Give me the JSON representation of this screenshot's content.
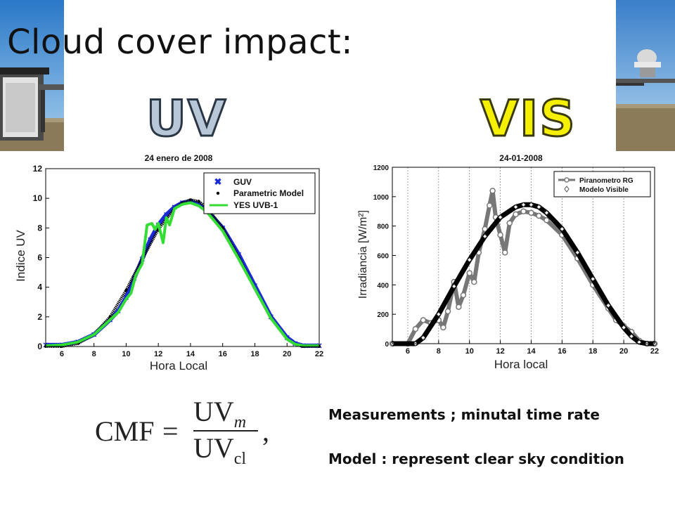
{
  "slide": {
    "title": "Cloud cover impact:",
    "uv_label": "UV",
    "vis_label": "VIS",
    "formula": {
      "lhs": "CMF",
      "eq": "=",
      "num": "UV",
      "num_sub": "m",
      "den": "UV",
      "den_sub": "cl",
      "tail": ","
    },
    "notes": [
      "Measurements ; minutal time rate",
      "Model : represent  clear sky condition"
    ]
  },
  "chart_data": [
    {
      "type": "line",
      "title": "24 enero de 2008",
      "xlabel": "Hora Local",
      "ylabel": "Indice UV",
      "xlim": [
        5,
        22
      ],
      "ylim": [
        0,
        12
      ],
      "xticks": [
        6,
        8,
        10,
        12,
        14,
        16,
        18,
        20,
        22
      ],
      "yticks": [
        0,
        2,
        4,
        6,
        8,
        10,
        12
      ],
      "legend_position": "top-right",
      "grid": false,
      "series": [
        {
          "name": "GUV",
          "color": "#1a2ad8",
          "marker": "x",
          "x": [
            5,
            6,
            7,
            8,
            9,
            9.5,
            10,
            10.5,
            11,
            11.5,
            12,
            12.5,
            13,
            13.5,
            14,
            14.5,
            15,
            16,
            17,
            18,
            19,
            20,
            20.5,
            21,
            22
          ],
          "y": [
            0.1,
            0.1,
            0.3,
            0.8,
            1.8,
            2.4,
            3.3,
            4.6,
            5.9,
            7.2,
            8.2,
            8.9,
            9.4,
            9.7,
            9.8,
            9.6,
            9.2,
            8.0,
            6.2,
            4.1,
            2.0,
            0.6,
            0.2,
            0.05,
            0.05
          ]
        },
        {
          "name": "Parametric Model",
          "color": "#000000",
          "marker": "dot",
          "x": [
            5,
            6,
            7,
            8,
            9,
            10,
            11,
            12,
            13,
            13.5,
            14,
            14.5,
            15,
            16,
            17,
            18,
            19,
            20,
            20.5,
            21,
            22
          ],
          "y": [
            0,
            0,
            0.2,
            0.8,
            2.0,
            3.8,
            5.9,
            7.9,
            9.3,
            9.7,
            9.9,
            9.8,
            9.4,
            8.0,
            6.0,
            3.9,
            1.9,
            0.5,
            0.15,
            0,
            0
          ]
        },
        {
          "name": "YES UVB-1",
          "color": "#33dd33",
          "marker": "line",
          "x": [
            5,
            6,
            7,
            8,
            9,
            9.5,
            10,
            10.3,
            10.6,
            11,
            11.3,
            11.6,
            11.8,
            12,
            12.3,
            12.5,
            12.7,
            13,
            13.5,
            14,
            14.5,
            15,
            16,
            17,
            18,
            19,
            20,
            20.5,
            21,
            22
          ],
          "y": [
            0.05,
            0.1,
            0.3,
            0.8,
            1.8,
            2.3,
            3.2,
            3.6,
            4.8,
            5.6,
            8.2,
            8.3,
            7.9,
            8.3,
            7.0,
            8.7,
            8.2,
            9.3,
            9.6,
            9.7,
            9.5,
            9.1,
            7.8,
            5.9,
            3.9,
            1.9,
            0.5,
            0.15,
            0.05,
            0.05
          ]
        }
      ]
    },
    {
      "type": "line",
      "title": "24-01-2008",
      "xlabel": "Hora local",
      "ylabel": "Irradiancia [W/m²]",
      "xlim": [
        5,
        22
      ],
      "ylim": [
        0,
        1200
      ],
      "xticks": [
        6,
        8,
        10,
        12,
        14,
        16,
        18,
        20,
        22
      ],
      "yticks": [
        0,
        200,
        400,
        600,
        800,
        1000,
        1200
      ],
      "legend_position": "top-right",
      "grid": true,
      "series": [
        {
          "name": "Piranometro RG",
          "color": "#777777",
          "marker": "circle",
          "x": [
            5,
            6,
            6.5,
            7,
            7.5,
            8,
            8.3,
            8.6,
            9,
            9.3,
            9.6,
            10,
            10.3,
            10.6,
            11,
            11.3,
            11.5,
            11.7,
            12,
            12.3,
            12.6,
            13,
            13.5,
            14,
            14.5,
            15,
            16,
            17,
            18,
            19,
            19.5,
            20,
            20.5,
            21,
            21.5,
            22
          ],
          "y": [
            0,
            0,
            100,
            160,
            140,
            160,
            110,
            220,
            420,
            250,
            330,
            480,
            420,
            620,
            780,
            940,
            1040,
            860,
            740,
            620,
            820,
            880,
            900,
            890,
            870,
            840,
            740,
            580,
            400,
            240,
            160,
            120,
            80,
            20,
            0,
            0
          ]
        },
        {
          "name": "Modelo Visible",
          "color": "#000000",
          "marker": "diamond",
          "x": [
            5,
            6.5,
            7,
            8,
            9,
            10,
            11,
            12,
            13,
            13.5,
            14,
            14.5,
            15,
            16,
            17,
            18,
            19,
            20,
            20.5,
            21,
            21.5,
            22
          ],
          "y": [
            0,
            0,
            40,
            200,
            390,
            570,
            730,
            860,
            930,
            945,
            945,
            930,
            890,
            780,
            620,
            440,
            260,
            110,
            50,
            10,
            0,
            0
          ]
        }
      ]
    }
  ]
}
